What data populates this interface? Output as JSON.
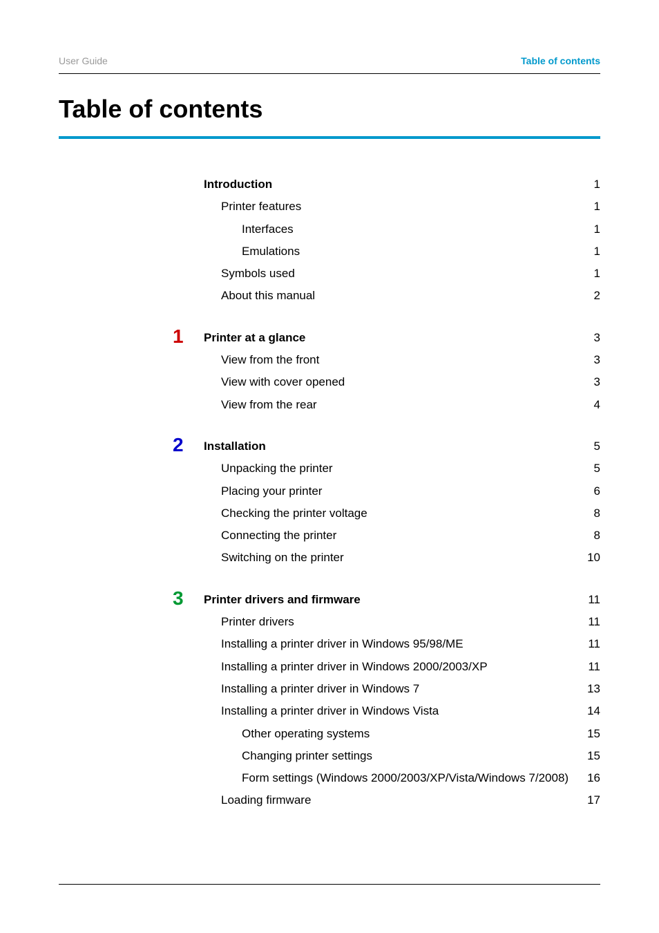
{
  "header": {
    "left": "User Guide",
    "right": "Table of contents"
  },
  "title": "Table of contents",
  "colors": {
    "accent": "#0099cc",
    "grey": "#999999",
    "red": "#cc0000",
    "blue": "#0000cc",
    "green": "#009933",
    "text": "#000000",
    "background": "#ffffff"
  },
  "sections": [
    {
      "number": "",
      "heading": "Introduction",
      "heading_page": "1",
      "color": "#000000",
      "items": [
        {
          "text": "Printer features",
          "page": "1",
          "level": 1
        },
        {
          "text": "Interfaces",
          "page": "1",
          "level": 2
        },
        {
          "text": "Emulations",
          "page": "1",
          "level": 2
        },
        {
          "text": "Symbols used",
          "page": "1",
          "level": 1
        },
        {
          "text": "About this manual",
          "page": "2",
          "level": 1
        }
      ]
    },
    {
      "number": "1",
      "heading": "Printer at a glance",
      "heading_page": "3",
      "color": "#cc0000",
      "items": [
        {
          "text": "View from the front",
          "page": "3",
          "level": 1
        },
        {
          "text": "View with cover opened",
          "page": "3",
          "level": 1
        },
        {
          "text": "View from the rear",
          "page": "4",
          "level": 1
        }
      ]
    },
    {
      "number": "2",
      "heading": "Installation",
      "heading_page": "5",
      "color": "#0000cc",
      "items": [
        {
          "text": "Unpacking the printer",
          "page": "5",
          "level": 1
        },
        {
          "text": "Placing your printer",
          "page": "6",
          "level": 1
        },
        {
          "text": "Checking the printer voltage",
          "page": "8",
          "level": 1
        },
        {
          "text": "Connecting the printer",
          "page": "8",
          "level": 1
        },
        {
          "text": "Switching on the printer",
          "page": "10",
          "level": 1
        }
      ]
    },
    {
      "number": "3",
      "heading": "Printer drivers and firmware",
      "heading_page": "11",
      "color": "#009933",
      "items": [
        {
          "text": "Printer drivers",
          "page": "11",
          "level": 1
        },
        {
          "text": "Installing a printer driver in Windows 95/98/ME",
          "page": "11",
          "level": 1
        },
        {
          "text": "Installing a printer driver in Windows 2000/2003/XP",
          "page": "11",
          "level": 1,
          "multiline": true
        },
        {
          "text": "Installing a printer driver in Windows 7",
          "page": "13",
          "level": 1
        },
        {
          "text": "Installing a printer driver in Windows Vista",
          "page": "14",
          "level": 1
        },
        {
          "text": "Other operating systems",
          "page": "15",
          "level": 2
        },
        {
          "text": "Changing printer settings",
          "page": "15",
          "level": 2
        },
        {
          "text": "Form settings (Windows 2000/2003/XP/Vista/Windows 7/2008)",
          "page": "16",
          "level": 2,
          "multiline": true,
          "no_top_page": true
        },
        {
          "text": "Loading firmware",
          "page": "17",
          "level": 1
        }
      ]
    }
  ]
}
